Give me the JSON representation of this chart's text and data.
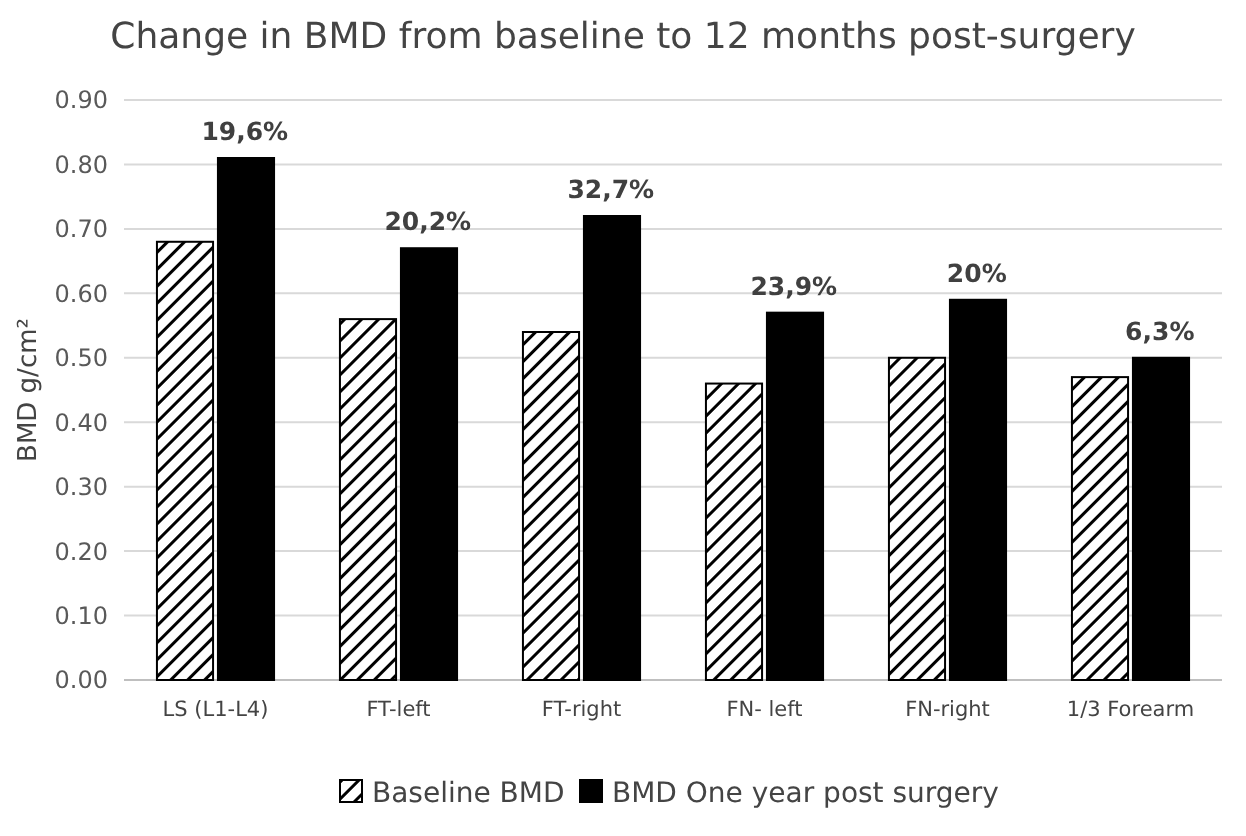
{
  "chart_data": {
    "type": "bar",
    "title": "Change in BMD from baseline to 12 months post-surgery",
    "ylabel": "BMD g/cm²",
    "categories": [
      "LS (L1-L4)",
      "FT-left",
      "FT-right",
      "FN- left",
      "FN-right",
      "1/3 Forearm"
    ],
    "series": [
      {
        "name": "Baseline BMD",
        "color": "#000000",
        "values": [
          0.68,
          0.56,
          0.54,
          0.46,
          0.5,
          0.47
        ]
      },
      {
        "name": "BMD One year post surgery",
        "color": "#000000",
        "values": [
          0.81,
          0.67,
          0.72,
          0.57,
          0.59,
          0.5
        ]
      }
    ],
    "ylim": [
      0,
      0.9
    ],
    "yticks": [
      {
        "value": 0,
        "label": "0.00"
      },
      {
        "value": 0.1,
        "label": "0.10"
      },
      {
        "value": 0.2,
        "label": "0.20"
      },
      {
        "value": 0.3,
        "label": "0.30"
      },
      {
        "value": 0.4,
        "label": "0.40"
      },
      {
        "value": 0.5,
        "label": "0.50"
      },
      {
        "value": 0.6,
        "label": "0.60"
      },
      {
        "value": 0.7,
        "label": "0.70"
      },
      {
        "value": 0.8,
        "label": "0.80"
      },
      {
        "value": 0.9,
        "label": "0.90"
      }
    ],
    "grid": "y",
    "legend": "bottom",
    "annotations": [
      {
        "text": "19,6%",
        "x": "LS (L1-L4)",
        "y": 0.81
      },
      {
        "text": "20,2%",
        "x": "FT-left",
        "y": 0.67
      },
      {
        "text": "32,7%",
        "x": "FT-right",
        "y": 0.72
      },
      {
        "text": "23,9%",
        "x": "FN- left",
        "y": 0.57
      },
      {
        "text": "20%",
        "x": "FN-right",
        "y": 0.59
      },
      {
        "text": "6,3%",
        "x": "1/3 Forearm",
        "y": 0.5
      }
    ]
  }
}
